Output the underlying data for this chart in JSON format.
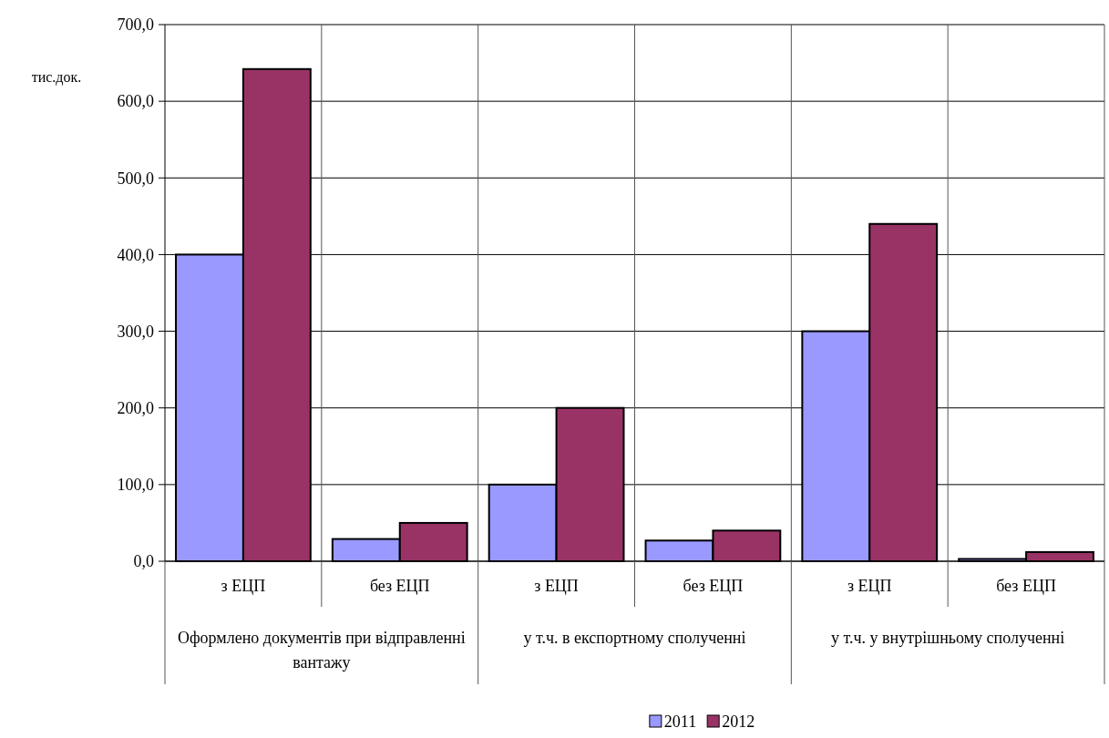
{
  "chart_data": {
    "type": "bar",
    "ylabel": "тис.док.",
    "categories": [
      "з ЕЦП",
      "без ЕЦП",
      "з ЕЦП",
      "без ЕЦП",
      "з ЕЦП",
      "без ЕЦП"
    ],
    "series": [
      {
        "name": "2011",
        "color": "#9999ff",
        "values": [
          400,
          29,
          100,
          27,
          300,
          3
        ]
      },
      {
        "name": "2012",
        "color": "#993366",
        "values": [
          642,
          50,
          200,
          40,
          440,
          12
        ]
      }
    ],
    "ylim": [
      0,
      700
    ],
    "yticks": [
      {
        "value": 0,
        "label": "0,0"
      },
      {
        "value": 100,
        "label": "100,0"
      },
      {
        "value": 200,
        "label": "200,0"
      },
      {
        "value": 300,
        "label": "300,0"
      },
      {
        "value": 400,
        "label": "400,0"
      },
      {
        "value": 500,
        "label": "500,0"
      },
      {
        "value": 600,
        "label": "600,0"
      },
      {
        "value": 700,
        "label": "700,0"
      }
    ],
    "grid": true,
    "legend": "bottom",
    "annotations": [
      "Оформлено документів при відправленні вантажу",
      "у т.ч. в експортному сполученні",
      "у т.ч. у внутрішньому сполученні"
    ]
  }
}
